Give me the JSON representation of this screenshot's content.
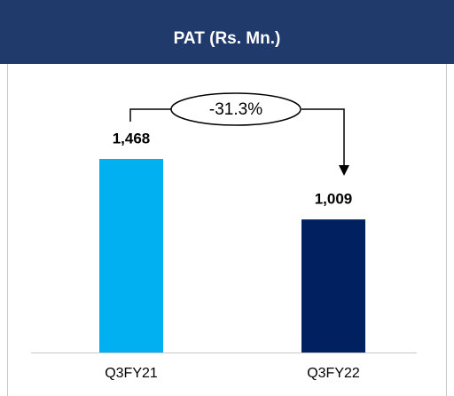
{
  "chart_data": {
    "type": "bar",
    "title": "PAT (Rs. Mn.)",
    "categories": [
      "Q3FY21",
      "Q3FY22"
    ],
    "values": [
      1468,
      1009
    ],
    "value_labels": [
      "1,468",
      "1,009"
    ],
    "colors": [
      "#00b0f0",
      "#002060"
    ],
    "annotation": "-31.3%"
  }
}
